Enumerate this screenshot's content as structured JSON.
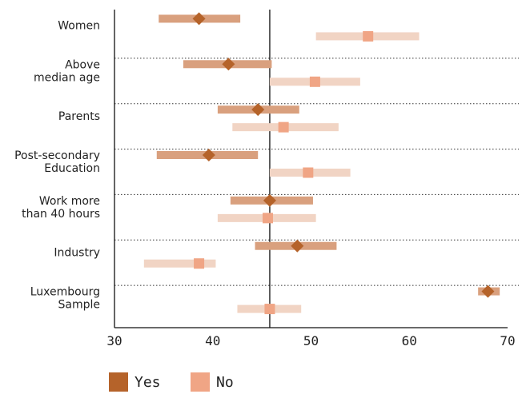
{
  "chart_data": {
    "type": "dot-range",
    "categories": [
      [
        "Women"
      ],
      [
        "Above",
        "median age"
      ],
      [
        "Parents"
      ],
      [
        "Post-secondary",
        "Education"
      ],
      [
        "Work more",
        "than 40 hours"
      ],
      [
        "Industry"
      ],
      [
        "Luxembourg",
        "Sample"
      ]
    ],
    "series": [
      {
        "name": "Yes",
        "color": "#b5632a",
        "bar_color": "#d9a07e",
        "marker": "diamond",
        "points": [
          38.6,
          41.6,
          44.6,
          39.6,
          45.8,
          48.6,
          68.0
        ],
        "ranges": [
          [
            34.5,
            42.8
          ],
          [
            37.0,
            46.0
          ],
          [
            40.5,
            48.8
          ],
          [
            34.3,
            44.6
          ],
          [
            41.8,
            50.2
          ],
          [
            44.3,
            52.6
          ],
          [
            67.0,
            69.2
          ]
        ]
      },
      {
        "name": "No",
        "color": "#f0a585",
        "bar_color": "#f1d4c4",
        "marker": "square",
        "points": [
          55.8,
          50.4,
          47.2,
          49.7,
          45.6,
          38.6,
          45.8
        ],
        "ranges": [
          [
            50.5,
            61.0
          ],
          [
            45.8,
            55.0
          ],
          [
            42.0,
            52.8
          ],
          [
            45.8,
            54.0
          ],
          [
            40.5,
            50.5
          ],
          [
            33.0,
            40.3
          ],
          [
            42.5,
            49.0
          ]
        ]
      }
    ],
    "reference_line": 45.8,
    "xlim": [
      30,
      70
    ],
    "xticks": [
      30,
      40,
      50,
      60,
      70
    ],
    "legend": {
      "position": "bottom-left",
      "entries": [
        "Yes",
        "No"
      ]
    }
  }
}
